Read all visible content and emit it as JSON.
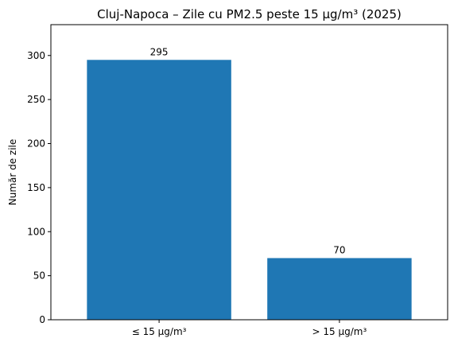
{
  "chart_data": {
    "type": "bar",
    "title": "Cluj-Napoca – Zile cu PM2.5 peste 15 µg/m³ (2025)",
    "xlabel": "",
    "ylabel": "Număr de zile",
    "categories": [
      "≤ 15 µg/m³",
      "> 15 µg/m³"
    ],
    "values": [
      295,
      70
    ],
    "data_labels": [
      "295",
      "70"
    ],
    "yticks": [
      0,
      50,
      100,
      150,
      200,
      250,
      300
    ],
    "ylim": [
      0,
      335
    ],
    "bar_color": "#1f77b4",
    "grid": false,
    "legend": "none"
  }
}
